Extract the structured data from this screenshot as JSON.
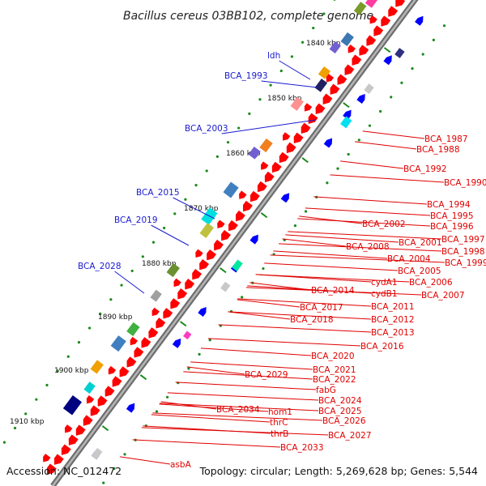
{
  "title": "Bacillus cereus 03BB102, complete genome",
  "footer": {
    "accession": "Accession: NC_012472",
    "summary": "Topology: circular; Length: 5,269,628 bp; Genes: 5,544"
  },
  "ticks": [
    {
      "label": "1840 kbp",
      "value": 1840
    },
    {
      "label": "1850 kbp",
      "value": 1850
    },
    {
      "label": "1860 kbp",
      "value": 1860
    },
    {
      "label": "1870 kbp",
      "value": 1870
    },
    {
      "label": "1880 kbp",
      "value": 1880
    },
    {
      "label": "1890 kbp",
      "value": 1890
    },
    {
      "label": "1900 kbp",
      "value": 1900
    },
    {
      "label": "1910 kbp",
      "value": 1910
    }
  ],
  "outer_labels": [
    "ldh",
    "BCA_1993",
    "BCA_2003",
    "BCA_2015",
    "BCA_2019",
    "BCA_2028"
  ],
  "inner_labels": [
    "BCA_1987",
    "BCA_1988",
    "BCA_1992",
    "BCA_1990",
    "BCA_1994",
    "BCA_1995",
    "BCA_1996",
    "BCA_1997",
    "BCA_1998",
    "BCA_1999",
    "BCA_2002",
    "BCA_2001",
    "BCA_2008",
    "BCA_2004",
    "BCA_2005",
    "BCA_2006",
    "cydA1",
    "cydB1",
    "BCA_2007",
    "BCA_2014",
    "BCA_2011",
    "BCA_2017",
    "BCA_2012",
    "BCA_2018",
    "BCA_2013",
    "BCA_2016",
    "BCA_2020",
    "BCA_2021",
    "BCA_2029",
    "BCA_2022",
    "fabG",
    "BCA_2024",
    "BCA_2034",
    "hom1",
    "BCA_2025",
    "thrC",
    "BCA_2026",
    "thrB",
    "BCA_2027",
    "BCA_2033",
    "asbA"
  ],
  "colors": {
    "backbone": "#8a8a8a",
    "cds_forward": "#ff0000",
    "cds_reverse": "#0000ff",
    "outer_label": "#1a1ad0",
    "inner_label": "#e00000",
    "gc_dots": "#1a8a1a"
  }
}
